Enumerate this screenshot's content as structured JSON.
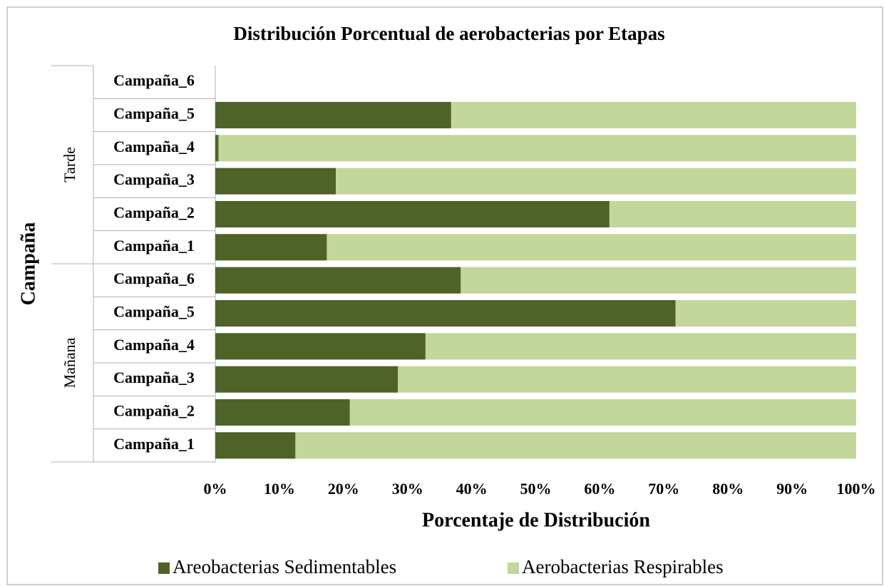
{
  "chart_data": {
    "type": "stacked-bar-horizontal",
    "title": "Distribución Porcentual de aerobacterias por Etapas",
    "y_axis_label": "Campaña",
    "x_axis_label": "Porcentaje de Distribución",
    "groups": [
      {
        "name": "Mañana",
        "categories": [
          "Campaña_1",
          "Campaña_2",
          "Campaña_3",
          "Campaña_4",
          "Campaña_5",
          "Campaña_6"
        ]
      },
      {
        "name": "Tarde",
        "categories": [
          "Campaña_1",
          "Campaña_2",
          "Campaña_3",
          "Campaña_4",
          "Campaña_5",
          "Campaña_6"
        ]
      }
    ],
    "series": [
      {
        "name": "Areobacterias Sedimentables",
        "color": "#4f6228",
        "values": [
          12.5,
          21,
          28.5,
          32.8,
          71.8,
          38.3,
          17.4,
          61.5,
          18.8,
          0.5,
          36.8,
          null
        ]
      },
      {
        "name": "Aerobacterias Respirables",
        "color": "#c3d69b",
        "values": [
          87.5,
          79,
          71.5,
          67.2,
          28.2,
          61.7,
          82.6,
          38.5,
          81.2,
          99.5,
          63.2,
          null
        ]
      }
    ],
    "xlim": [
      0,
      100
    ],
    "xticks": [
      {
        "value": 0,
        "label": "0%"
      },
      {
        "value": 10,
        "label": "10%"
      },
      {
        "value": 20,
        "label": "20%"
      },
      {
        "value": 30,
        "label": "30%"
      },
      {
        "value": 40,
        "label": "40%"
      },
      {
        "value": 50,
        "label": "50%"
      },
      {
        "value": 60,
        "label": "60%"
      },
      {
        "value": 70,
        "label": "70%"
      },
      {
        "value": 80,
        "label": "80%"
      },
      {
        "value": 90,
        "label": "90%"
      },
      {
        "value": 100,
        "label": "100%"
      }
    ],
    "legend": "bottom"
  }
}
